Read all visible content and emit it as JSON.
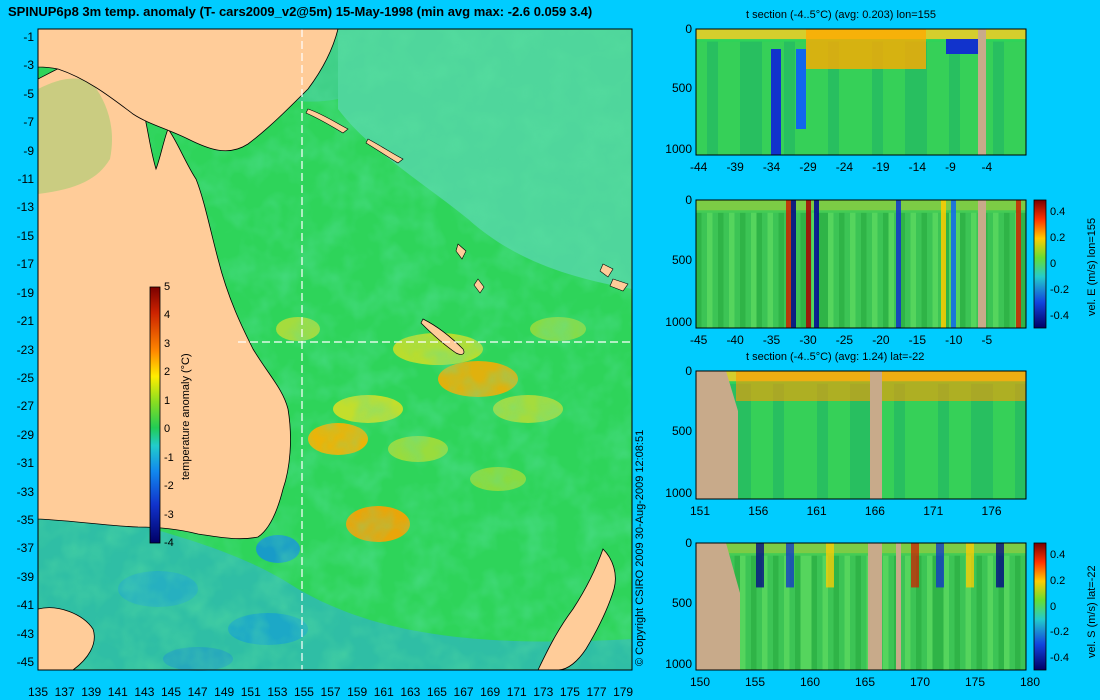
{
  "title": "SPINUP6p8 3m temp. anomaly (T- cars2009_v2@5m) 15-May-1998 (min avg max: -2.6 0.059 3.4)",
  "copyright": "© Copyright CSIRO 2009   30-Aug-2009 12:08:51",
  "colors": {
    "background": "#00ccff",
    "land": "#ffcc99",
    "section_land": "#c8aa8a",
    "ocean_base": "#22cc55",
    "warm": "#ffcc00",
    "cold": "#1166ee"
  },
  "map": {
    "lon_ticks": [
      "135",
      "137",
      "139",
      "141",
      "143",
      "145",
      "147",
      "149",
      "151",
      "153",
      "155",
      "157",
      "159",
      "161",
      "163",
      "165",
      "167",
      "169",
      "171",
      "173",
      "175",
      "177",
      "179"
    ],
    "lat_ticks": [
      "-1",
      "-3",
      "-5",
      "-7",
      "-9",
      "-11",
      "-13",
      "-15",
      "-17",
      "-19",
      "-21",
      "-23",
      "-25",
      "-27",
      "-29",
      "-31",
      "-33",
      "-35",
      "-37",
      "-39",
      "-41",
      "-43",
      "-45"
    ],
    "crosshair_lon": 155,
    "crosshair_lat": -22,
    "colorbar": {
      "label": "temperature anomaly (°C)",
      "ticks": [
        "5",
        "4",
        "3",
        "2",
        "1",
        "0",
        "-1",
        "-2",
        "-3",
        "-4"
      ]
    }
  },
  "panels": [
    {
      "title": "t section (-4..5°C) (avg: 0.203) lon=155",
      "side_label": "",
      "y_ticks": [
        "0",
        "500",
        "1000"
      ],
      "x_ticks": [
        "-44",
        "-39",
        "-34",
        "-29",
        "-24",
        "-19",
        "-14",
        "-9",
        "-4"
      ],
      "colorbar_ticks": []
    },
    {
      "title": "",
      "side_label": "vel. E (m/s) lon=155",
      "y_ticks": [
        "0",
        "500",
        "1000"
      ],
      "x_ticks": [
        "-45",
        "-40",
        "-35",
        "-30",
        "-25",
        "-20",
        "-15",
        "-10",
        "-5"
      ],
      "colorbar_ticks": [
        "0.4",
        "0.2",
        "0",
        "-0.2",
        "-0.4"
      ]
    },
    {
      "title": "t section (-4..5°C) (avg: 1.24) lat=-22",
      "side_label": "",
      "y_ticks": [
        "0",
        "500",
        "1000"
      ],
      "x_ticks": [
        "151",
        "156",
        "161",
        "166",
        "171",
        "176"
      ],
      "colorbar_ticks": []
    },
    {
      "title": "",
      "side_label": "vel. S (m/s) lat=-22",
      "y_ticks": [
        "0",
        "500",
        "1000"
      ],
      "x_ticks": [
        "150",
        "155",
        "160",
        "165",
        "170",
        "175",
        "180"
      ],
      "colorbar_ticks": [
        "0.4",
        "0.2",
        "0",
        "-0.2",
        "-0.4"
      ]
    }
  ]
}
